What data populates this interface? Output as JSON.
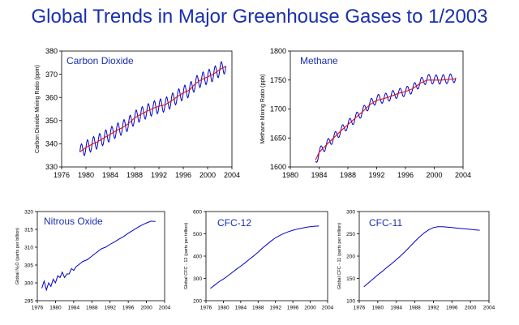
{
  "page_title": "Global Trends in Major Greenhouse Gases to 1/2003",
  "colors": {
    "title": "#1a2fb0",
    "series_blue": "#0000cc",
    "trend_red": "#e01010",
    "panel_label": "#1a2fb0"
  },
  "chart_data": [
    {
      "id": "co2",
      "type": "line",
      "title": "Carbon Dioxide",
      "ylabel": "Carbon Dioxide Mixing Ratio (ppm)",
      "xlim": [
        1976,
        2004
      ],
      "ylim": [
        330,
        380
      ],
      "xticks": [
        1976,
        1980,
        1984,
        1988,
        1992,
        1996,
        2000,
        2004
      ],
      "yticks": [
        330,
        340,
        350,
        360,
        370,
        380
      ],
      "seasonal_amplitude": 3,
      "series": [
        {
          "role": "monthly",
          "x": [
            1979.0,
            1980.0,
            1981.0,
            1982.0,
            1983.0,
            1984.0,
            1985.0,
            1986.0,
            1987.0,
            1988.0,
            1989.0,
            1990.0,
            1991.0,
            1992.0,
            1993.0,
            1994.0,
            1995.0,
            1996.0,
            1997.0,
            1998.0,
            1999.0,
            2000.0,
            2001.0,
            2002.0,
            2003.0
          ],
          "values": [
            336.5,
            338.4,
            339.8,
            341.0,
            342.6,
            344.1,
            345.7,
            347.0,
            348.7,
            351.2,
            352.7,
            354.0,
            355.3,
            356.2,
            356.8,
            358.4,
            360.3,
            362.0,
            363.1,
            366.0,
            367.7,
            368.8,
            370.1,
            372.0,
            373.5
          ]
        },
        {
          "role": "trend",
          "x": [
            1979.0,
            1980.0,
            1981.0,
            1982.0,
            1983.0,
            1984.0,
            1985.0,
            1986.0,
            1987.0,
            1988.0,
            1989.0,
            1990.0,
            1991.0,
            1992.0,
            1993.0,
            1994.0,
            1995.0,
            1996.0,
            1997.0,
            1998.0,
            1999.0,
            2000.0,
            2001.0,
            2002.0,
            2003.0
          ],
          "values": [
            336.5,
            338.4,
            339.8,
            341.0,
            342.6,
            344.1,
            345.7,
            347.0,
            348.7,
            351.2,
            352.7,
            354.0,
            355.3,
            356.2,
            356.8,
            358.4,
            360.3,
            362.0,
            363.1,
            366.0,
            367.7,
            368.8,
            370.1,
            372.0,
            373.5
          ]
        }
      ]
    },
    {
      "id": "ch4",
      "type": "line",
      "title": "Methane",
      "ylabel": "Methane Mixing Ratio (ppb)",
      "xlim": [
        1980,
        2004
      ],
      "ylim": [
        1600,
        1800
      ],
      "xticks": [
        1980,
        1984,
        1988,
        1992,
        1996,
        2000,
        2004
      ],
      "yticks": [
        1600,
        1650,
        1700,
        1750,
        1800
      ],
      "seasonal_amplitude": 8,
      "series": [
        {
          "role": "monthly",
          "x": [
            1983.5,
            1984.0,
            1985.0,
            1986.0,
            1987.0,
            1988.0,
            1989.0,
            1990.0,
            1991.0,
            1992.0,
            1993.0,
            1994.0,
            1995.0,
            1996.0,
            1997.0,
            1998.0,
            1999.0,
            2000.0,
            2001.0,
            2002.0,
            2003.0
          ],
          "values": [
            1610,
            1625,
            1638,
            1650,
            1662,
            1673,
            1684,
            1695,
            1708,
            1717,
            1718,
            1723,
            1727,
            1730,
            1735,
            1745,
            1752,
            1751,
            1751,
            1752,
            1754
          ]
        },
        {
          "role": "trend",
          "x": [
            1983.5,
            1984.0,
            1985.0,
            1986.0,
            1987.0,
            1988.0,
            1989.0,
            1990.0,
            1991.0,
            1992.0,
            1993.0,
            1994.0,
            1995.0,
            1996.0,
            1997.0,
            1998.0,
            1999.0,
            2000.0,
            2001.0,
            2002.0,
            2003.0
          ],
          "values": [
            1612,
            1625,
            1638,
            1650,
            1662,
            1673,
            1684,
            1695,
            1707,
            1715,
            1718,
            1722,
            1727,
            1730,
            1735,
            1744,
            1750,
            1750,
            1750,
            1751,
            1752
          ]
        }
      ]
    },
    {
      "id": "n2o",
      "type": "line",
      "title": "Nitrous Oxide",
      "ylabel": "Global N₂O (parts per billion)",
      "xlim": [
        1976,
        2004
      ],
      "ylim": [
        295,
        320
      ],
      "xticks": [
        1976,
        1980,
        1984,
        1988,
        1992,
        1996,
        2000,
        2004
      ],
      "yticks": [
        295,
        300,
        305,
        310,
        315,
        320
      ],
      "series": [
        {
          "role": "monthly",
          "x": [
            1977.0,
            1977.5,
            1978.0,
            1978.5,
            1979.0,
            1979.5,
            1980.0,
            1980.5,
            1981.0,
            1981.5,
            1982.0,
            1982.5,
            1983.0,
            1983.5,
            1984.0,
            1984.5,
            1985.0,
            1986.0,
            1987.0,
            1988.0,
            1989.0,
            1990.0,
            1991.0,
            1992.0,
            1993.0,
            1994.0,
            1995.0,
            1996.0,
            1997.0,
            1998.0,
            1999.0,
            2000.0,
            2001.0,
            2002.0
          ],
          "values": [
            298.5,
            300.5,
            298.0,
            300.0,
            299.0,
            301.0,
            300.0,
            302.0,
            301.5,
            303.0,
            301.5,
            302.5,
            302.5,
            304.0,
            303.5,
            304.5,
            305.0,
            306.0,
            306.5,
            307.5,
            308.5,
            309.5,
            310.0,
            310.8,
            311.5,
            312.3,
            313.0,
            313.9,
            314.7,
            315.5,
            316.2,
            316.8,
            317.3,
            317.2
          ]
        }
      ]
    },
    {
      "id": "cfc12",
      "type": "line",
      "title": "CFC-12",
      "ylabel": "Global CFC - 12 (parts per trillion)",
      "xlim": [
        1976,
        2004
      ],
      "ylim": [
        200,
        600
      ],
      "xticks": [
        1976,
        1980,
        1984,
        1988,
        1992,
        1996,
        2000,
        2004
      ],
      "yticks": [
        200,
        300,
        400,
        500,
        600
      ],
      "series": [
        {
          "role": "monthly",
          "x": [
            1977.0,
            1978.0,
            1979.0,
            1980.0,
            1981.0,
            1982.0,
            1983.0,
            1984.0,
            1985.0,
            1986.0,
            1987.0,
            1988.0,
            1989.0,
            1990.0,
            1991.0,
            1992.0,
            1993.0,
            1994.0,
            1995.0,
            1996.0,
            1997.0,
            1998.0,
            1999.0,
            2000.0,
            2001.0,
            2002.0
          ],
          "values": [
            255,
            270,
            285,
            297,
            311,
            326,
            341,
            355,
            370,
            386,
            401,
            418,
            436,
            452,
            468,
            482,
            493,
            502,
            510,
            516,
            521,
            525,
            529,
            532,
            534,
            535
          ]
        }
      ]
    },
    {
      "id": "cfc11",
      "type": "line",
      "title": "CFC-11",
      "ylabel": "Global CFC - 11 (parts per trillion)",
      "xlim": [
        1976,
        2004
      ],
      "ylim": [
        100,
        300
      ],
      "xticks": [
        1976,
        1980,
        1984,
        1988,
        1992,
        1996,
        2000,
        2004
      ],
      "yticks": [
        100,
        150,
        200,
        250,
        300
      ],
      "series": [
        {
          "role": "monthly",
          "x": [
            1977.0,
            1978.0,
            1979.0,
            1980.0,
            1981.0,
            1982.0,
            1983.0,
            1984.0,
            1985.0,
            1986.0,
            1987.0,
            1988.0,
            1989.0,
            1990.0,
            1991.0,
            1992.0,
            1993.0,
            1994.0,
            1995.0,
            1996.0,
            1997.0,
            1998.0,
            1999.0,
            2000.0,
            2001.0,
            2002.0
          ],
          "values": [
            131,
            140,
            149,
            158,
            166,
            175,
            183,
            192,
            201,
            211,
            222,
            233,
            243,
            252,
            259,
            264,
            266,
            266,
            265,
            264,
            263,
            262,
            261,
            260,
            259,
            258
          ]
        }
      ]
    }
  ]
}
